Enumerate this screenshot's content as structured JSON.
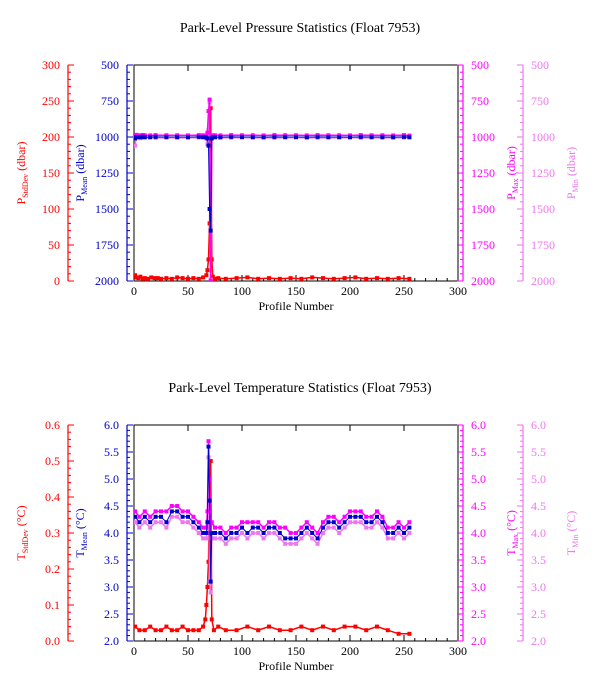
{
  "colors": {
    "stddev": "#ff0000",
    "mean": "#0000cc",
    "max": "#ff00ff",
    "min": "#ee77ee",
    "frame": "#000000"
  },
  "chart_data": [
    {
      "type": "line",
      "title": "Park-Level Pressure Statistics (Float 7953)",
      "xlabel": "Profile Number",
      "xlim": [
        0,
        300
      ],
      "xticks": [
        "0",
        "50",
        "100",
        "150",
        "200",
        "250",
        "300"
      ],
      "axes": {
        "stddev": {
          "label_main": "P",
          "label_sub": "StdDev",
          "label_unit": " (dbar)",
          "lim": [
            0,
            300
          ],
          "ticks": [
            "0",
            "50",
            "100",
            "150",
            "200",
            "250",
            "300"
          ]
        },
        "mean": {
          "label_main": "P",
          "label_sub": "Mean",
          "label_unit": " (dbar)",
          "lim": [
            2000,
            500
          ],
          "ticks": [
            "2000",
            "1750",
            "1500",
            "1250",
            "1000",
            "750",
            "500"
          ]
        },
        "max": {
          "label_main": "P",
          "label_sub": "Max",
          "label_unit": " (dbar)",
          "lim": [
            2000,
            500
          ],
          "ticks": [
            "2000",
            "1750",
            "1500",
            "1250",
            "1000",
            "750",
            "500"
          ]
        },
        "min": {
          "label_main": "P",
          "label_sub": "Min",
          "label_unit": " (dbar)",
          "lim": [
            2000,
            500
          ],
          "ticks": [
            "2000",
            "1750",
            "1500",
            "1250",
            "1000",
            "750",
            "500"
          ]
        }
      },
      "series": [
        {
          "axis": "stddev",
          "x": [
            1,
            2,
            4,
            6,
            8,
            10,
            13,
            16,
            19,
            22,
            25,
            30,
            35,
            40,
            45,
            50,
            55,
            60,
            64,
            67,
            68,
            69,
            70,
            71,
            72,
            73,
            75,
            78,
            85,
            95,
            105,
            115,
            125,
            135,
            145,
            155,
            165,
            175,
            185,
            195,
            205,
            215,
            225,
            235,
            245,
            255
          ],
          "values": [
            8,
            5,
            4,
            6,
            3,
            4,
            3,
            5,
            4,
            4,
            3,
            4,
            3,
            5,
            4,
            3,
            4,
            3,
            5,
            8,
            15,
            30,
            80,
            240,
            30,
            6,
            3,
            4,
            3,
            4,
            5,
            3,
            4,
            3,
            4,
            3,
            5,
            4,
            3,
            4,
            5,
            3,
            4,
            3,
            4,
            3
          ]
        },
        {
          "axis": "mean",
          "x": [
            1,
            2,
            4,
            6,
            8,
            10,
            15,
            20,
            30,
            40,
            50,
            60,
            64,
            67,
            68,
            69,
            70,
            71,
            72,
            73,
            75,
            80,
            90,
            100,
            110,
            120,
            130,
            140,
            150,
            160,
            170,
            180,
            190,
            200,
            210,
            220,
            230,
            240,
            250,
            255
          ],
          "values": [
            1010,
            1000,
            1000,
            1002,
            998,
            1000,
            1001,
            999,
            1000,
            1000,
            1001,
            999,
            1000,
            1002,
            1010,
            1060,
            1500,
            1650,
            1010,
            1000,
            1000,
            1001,
            999,
            1000,
            1000,
            1001,
            999,
            1000,
            1000,
            1001,
            999,
            1000,
            1000,
            1001,
            999,
            1000,
            1000,
            1001,
            999,
            1000
          ]
        },
        {
          "axis": "max",
          "x": [
            1,
            2,
            4,
            6,
            8,
            10,
            15,
            20,
            30,
            40,
            50,
            60,
            64,
            67,
            68,
            69,
            70,
            71,
            72,
            73,
            75,
            80,
            90,
            100,
            110,
            120,
            130,
            140,
            150,
            160,
            170,
            180,
            190,
            200,
            210,
            220,
            230,
            240,
            250,
            255
          ],
          "values": [
            990,
            985,
            988,
            990,
            986,
            988,
            989,
            987,
            988,
            988,
            989,
            987,
            988,
            990,
            970,
            820,
            740,
            2000,
            990,
            988,
            988,
            989,
            987,
            988,
            988,
            989,
            987,
            988,
            988,
            989,
            987,
            988,
            988,
            989,
            987,
            988,
            988,
            989,
            987,
            990
          ]
        },
        {
          "axis": "min",
          "x": [
            1,
            2,
            4,
            6,
            8,
            10,
            15,
            20,
            30,
            40,
            50,
            60,
            64,
            67,
            68,
            69,
            70,
            71,
            72,
            73,
            75,
            80,
            90,
            100,
            110,
            120,
            130,
            140,
            150,
            160,
            170,
            180,
            190,
            200,
            210,
            220,
            230,
            240,
            250,
            255
          ],
          "values": [
            1060,
            1000,
            1005,
            1008,
            1005,
            1006,
            1004,
            1006,
            1005,
            1006,
            1005,
            1004,
            1005,
            1010,
            1050,
            950,
            760,
            1990,
            1010,
            1006,
            1005,
            1006,
            1005,
            1004,
            1006,
            1005,
            1006,
            1005,
            1004,
            1006,
            1005,
            1006,
            1005,
            1004,
            1006,
            1005,
            1006,
            1005,
            1004,
            1005
          ]
        }
      ]
    },
    {
      "type": "line",
      "title": "Park-Level Temperature Statistics (Float 7953)",
      "xlabel": "Profile Number",
      "xlim": [
        0,
        300
      ],
      "xticks": [
        "0",
        "50",
        "100",
        "150",
        "200",
        "250",
        "300"
      ],
      "axes": {
        "stddev": {
          "label_main": "T",
          "label_sub": "StdDev",
          "label_unit": " (°C)",
          "lim": [
            0,
            0.6
          ],
          "ticks": [
            "0.0",
            "0.1",
            "0.2",
            "0.3",
            "0.4",
            "0.5",
            "0.6"
          ]
        },
        "mean": {
          "label_main": "T",
          "label_sub": "Mean",
          "label_unit": " (°C)",
          "lim": [
            2.0,
            6.0
          ],
          "ticks": [
            "2.0",
            "2.5",
            "3.0",
            "3.5",
            "4.0",
            "4.5",
            "5.0",
            "5.5",
            "6.0"
          ]
        },
        "max": {
          "label_main": "T",
          "label_sub": "Max",
          "label_unit": " (°C)",
          "lim": [
            2.0,
            6.0
          ],
          "ticks": [
            "2.0",
            "2.5",
            "3.0",
            "3.5",
            "4.0",
            "4.5",
            "5.0",
            "5.5",
            "6.0"
          ]
        },
        "min": {
          "label_main": "T",
          "label_sub": "Min",
          "label_unit": " (°C)",
          "lim": [
            2.0,
            6.0
          ],
          "ticks": [
            "2.0",
            "2.5",
            "3.0",
            "3.5",
            "4.0",
            "4.5",
            "5.0",
            "5.5",
            "6.0"
          ]
        }
      },
      "series": [
        {
          "axis": "stddev",
          "x": [
            1,
            5,
            10,
            15,
            20,
            25,
            30,
            35,
            40,
            45,
            50,
            55,
            60,
            64,
            66,
            67,
            68,
            69,
            70,
            71,
            72,
            74,
            78,
            85,
            95,
            105,
            115,
            125,
            135,
            145,
            155,
            165,
            175,
            185,
            195,
            205,
            215,
            225,
            235,
            245,
            255
          ],
          "values": [
            0.04,
            0.03,
            0.03,
            0.04,
            0.03,
            0.03,
            0.04,
            0.03,
            0.03,
            0.04,
            0.03,
            0.03,
            0.03,
            0.04,
            0.06,
            0.1,
            0.15,
            0.22,
            0.45,
            0.5,
            0.06,
            0.03,
            0.04,
            0.03,
            0.03,
            0.04,
            0.03,
            0.04,
            0.03,
            0.03,
            0.04,
            0.03,
            0.04,
            0.03,
            0.04,
            0.04,
            0.03,
            0.04,
            0.03,
            0.02,
            0.02
          ]
        },
        {
          "axis": "mean",
          "x": [
            1,
            5,
            10,
            15,
            20,
            25,
            30,
            35,
            40,
            45,
            50,
            55,
            60,
            64,
            67,
            68,
            69,
            70,
            71,
            72,
            75,
            80,
            85,
            90,
            95,
            100,
            105,
            110,
            115,
            120,
            125,
            130,
            135,
            140,
            145,
            150,
            155,
            160,
            165,
            170,
            175,
            180,
            185,
            190,
            195,
            200,
            205,
            210,
            215,
            220,
            225,
            230,
            235,
            240,
            245,
            250,
            255
          ],
          "values": [
            4.3,
            4.2,
            4.3,
            4.2,
            4.3,
            4.3,
            4.2,
            4.4,
            4.4,
            4.3,
            4.3,
            4.2,
            4.1,
            4.0,
            4.0,
            4.2,
            5.6,
            4.6,
            3.1,
            4.0,
            4.0,
            4.0,
            3.9,
            4.0,
            4.0,
            4.1,
            4.0,
            4.1,
            4.1,
            4.0,
            4.1,
            4.1,
            4.0,
            3.9,
            3.9,
            3.9,
            4.0,
            4.1,
            4.0,
            3.9,
            4.1,
            4.2,
            4.2,
            4.1,
            4.2,
            4.3,
            4.3,
            4.3,
            4.2,
            4.2,
            4.3,
            4.2,
            4.0,
            4.0,
            4.1,
            4.0,
            4.1
          ]
        },
        {
          "axis": "max",
          "x": [
            1,
            5,
            10,
            15,
            20,
            25,
            30,
            35,
            40,
            45,
            50,
            55,
            60,
            64,
            67,
            68,
            69,
            70,
            71,
            72,
            75,
            80,
            85,
            90,
            95,
            100,
            105,
            110,
            115,
            120,
            125,
            130,
            135,
            140,
            145,
            150,
            155,
            160,
            165,
            170,
            175,
            180,
            185,
            190,
            195,
            200,
            205,
            210,
            215,
            220,
            225,
            230,
            235,
            240,
            245,
            250,
            255
          ],
          "values": [
            4.4,
            4.3,
            4.4,
            4.3,
            4.4,
            4.4,
            4.4,
            4.5,
            4.5,
            4.4,
            4.4,
            4.3,
            4.2,
            4.1,
            4.1,
            4.4,
            5.7,
            5.0,
            4.0,
            4.2,
            4.1,
            4.1,
            4.0,
            4.1,
            4.1,
            4.2,
            4.2,
            4.2,
            4.2,
            4.1,
            4.2,
            4.2,
            4.1,
            4.1,
            4.0,
            4.0,
            4.1,
            4.2,
            4.1,
            4.0,
            4.2,
            4.3,
            4.3,
            4.2,
            4.3,
            4.4,
            4.4,
            4.4,
            4.3,
            4.3,
            4.4,
            4.3,
            4.1,
            4.1,
            4.2,
            4.1,
            4.2
          ]
        },
        {
          "axis": "min",
          "x": [
            1,
            5,
            10,
            15,
            20,
            25,
            30,
            35,
            40,
            45,
            50,
            55,
            60,
            64,
            67,
            68,
            69,
            70,
            71,
            72,
            75,
            80,
            85,
            90,
            95,
            100,
            105,
            110,
            115,
            120,
            125,
            130,
            135,
            140,
            145,
            150,
            155,
            160,
            165,
            170,
            175,
            180,
            185,
            190,
            195,
            200,
            205,
            210,
            215,
            220,
            225,
            230,
            235,
            240,
            245,
            250,
            255
          ],
          "values": [
            4.2,
            4.1,
            4.2,
            4.1,
            4.2,
            4.2,
            4.1,
            4.3,
            4.3,
            4.2,
            4.2,
            4.1,
            4.0,
            3.9,
            3.9,
            4.1,
            5.4,
            3.1,
            2.9,
            3.9,
            3.9,
            3.9,
            3.8,
            3.9,
            3.9,
            4.0,
            3.9,
            4.0,
            4.0,
            3.9,
            4.0,
            4.0,
            3.9,
            3.8,
            3.8,
            3.8,
            3.9,
            4.0,
            3.9,
            3.8,
            4.0,
            4.1,
            4.1,
            4.0,
            4.1,
            4.2,
            4.2,
            4.2,
            4.1,
            4.1,
            4.2,
            4.1,
            3.9,
            3.9,
            4.0,
            3.9,
            4.0
          ]
        }
      ]
    }
  ]
}
